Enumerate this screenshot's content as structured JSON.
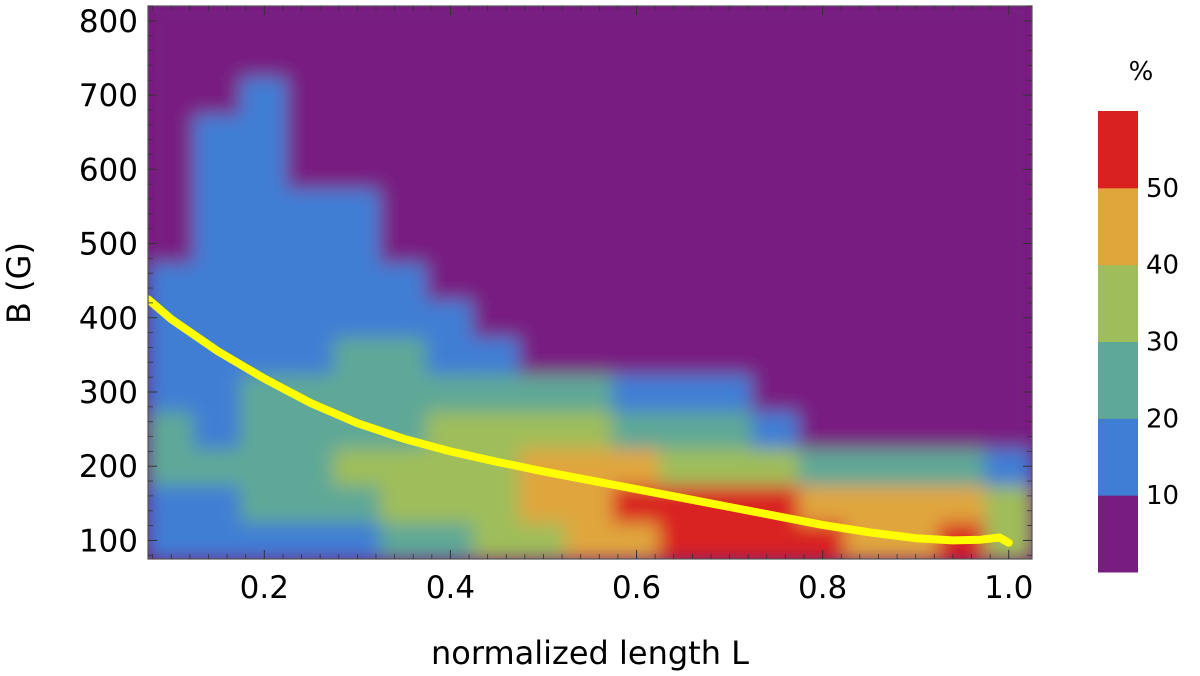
{
  "chart_data": {
    "type": "heatmap",
    "xlabel": "normalized length L",
    "ylabel": "B (G)",
    "xlim": [
      0.075,
      1.025
    ],
    "ylim": [
      75,
      820
    ],
    "x_ticks": [
      0.2,
      0.4,
      0.6,
      0.8,
      1.0
    ],
    "x_tick_labels": [
      "0.2",
      "0.4",
      "0.6",
      "0.8",
      "1.0"
    ],
    "y_ticks": [
      100,
      200,
      300,
      400,
      500,
      600,
      700,
      800
    ],
    "y_tick_labels": [
      "100",
      "200",
      "300",
      "400",
      "500",
      "600",
      "700",
      "800"
    ],
    "grid": false,
    "colorbar": {
      "title": "%",
      "levels": [
        {
          "min": 0,
          "max": 10,
          "color": "#781c81"
        },
        {
          "min": 10,
          "max": 20,
          "color": "#3f7ed4"
        },
        {
          "min": 20,
          "max": 30,
          "color": "#5ea897"
        },
        {
          "min": 30,
          "max": 40,
          "color": "#9fbd5a"
        },
        {
          "min": 40,
          "max": 50,
          "color": "#e0a63c"
        },
        {
          "min": 50,
          "max": 60,
          "color": "#d92120"
        }
      ],
      "tick_labels": [
        "10",
        "20",
        "30",
        "40",
        "50"
      ]
    },
    "heatmap_L": [
      0.1,
      0.15,
      0.2,
      0.25,
      0.3,
      0.35,
      0.4,
      0.45,
      0.5,
      0.55,
      0.6,
      0.65,
      0.7,
      0.75,
      0.8,
      0.85,
      0.9,
      0.95,
      1.0
    ],
    "heatmap_B": [
      100,
      150,
      200,
      250,
      300,
      350,
      400,
      450,
      500,
      550,
      600,
      650,
      700,
      750,
      800
    ],
    "heatmap_values": [
      [
        14,
        12,
        15,
        16,
        18,
        22,
        28,
        30,
        34,
        40,
        46,
        50,
        52,
        54,
        50,
        44,
        48,
        52,
        30
      ],
      [
        18,
        16,
        20,
        22,
        26,
        30,
        34,
        38,
        42,
        46,
        50,
        54,
        56,
        52,
        46,
        40,
        44,
        46,
        34
      ],
      [
        22,
        20,
        26,
        24,
        30,
        34,
        36,
        38,
        40,
        42,
        40,
        38,
        34,
        30,
        26,
        24,
        26,
        22,
        18
      ],
      [
        20,
        18,
        24,
        22,
        26,
        28,
        30,
        30,
        34,
        32,
        28,
        26,
        22,
        10,
        4,
        2,
        3,
        2,
        4
      ],
      [
        16,
        14,
        20,
        20,
        22,
        24,
        22,
        20,
        22,
        20,
        18,
        14,
        10,
        4,
        2,
        2,
        2,
        3,
        4
      ],
      [
        14,
        14,
        18,
        18,
        20,
        20,
        18,
        16,
        8,
        4,
        2,
        2,
        2,
        2,
        2,
        2,
        2,
        2,
        2
      ],
      [
        12,
        14,
        16,
        16,
        18,
        16,
        14,
        8,
        4,
        2,
        2,
        2,
        2,
        2,
        2,
        2,
        2,
        2,
        2
      ],
      [
        10,
        12,
        14,
        14,
        16,
        12,
        8,
        4,
        2,
        2,
        2,
        2,
        2,
        2,
        2,
        2,
        2,
        2,
        2
      ],
      [
        8,
        12,
        14,
        12,
        12,
        8,
        4,
        2,
        2,
        2,
        2,
        2,
        2,
        2,
        2,
        2,
        2,
        2,
        2
      ],
      [
        6,
        12,
        14,
        12,
        10,
        4,
        2,
        2,
        2,
        2,
        2,
        2,
        2,
        2,
        2,
        2,
        2,
        2,
        2
      ],
      [
        4,
        12,
        14,
        8,
        4,
        2,
        2,
        2,
        2,
        2,
        2,
        2,
        2,
        2,
        2,
        2,
        2,
        2,
        2
      ],
      [
        2,
        10,
        14,
        6,
        2,
        2,
        2,
        2,
        2,
        2,
        2,
        2,
        2,
        2,
        2,
        2,
        2,
        2,
        2
      ],
      [
        2,
        8,
        12,
        4,
        2,
        2,
        2,
        2,
        2,
        2,
        2,
        2,
        2,
        2,
        2,
        2,
        2,
        2,
        2
      ],
      [
        2,
        2,
        4,
        2,
        2,
        2,
        2,
        2,
        2,
        2,
        2,
        2,
        2,
        2,
        2,
        2,
        2,
        2,
        2
      ],
      [
        2,
        2,
        2,
        2,
        2,
        2,
        2,
        2,
        2,
        2,
        2,
        2,
        2,
        2,
        2,
        2,
        2,
        2,
        2
      ]
    ],
    "series": [
      {
        "color": "#ffff00",
        "x": [
          0.075,
          0.1,
          0.15,
          0.2,
          0.25,
          0.3,
          0.35,
          0.4,
          0.45,
          0.5,
          0.55,
          0.6,
          0.65,
          0.7,
          0.75,
          0.8,
          0.85,
          0.9,
          0.94,
          0.97,
          0.99,
          1.0
        ],
        "y": [
          425,
          398,
          355,
          318,
          285,
          258,
          237,
          220,
          206,
          193,
          181,
          169,
          157,
          145,
          133,
          121,
          111,
          103,
          100,
          101,
          104,
          97
        ]
      }
    ]
  }
}
